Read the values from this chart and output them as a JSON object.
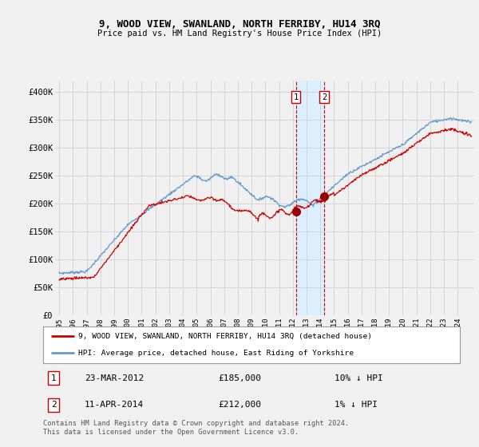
{
  "title": "9, WOOD VIEW, SWANLAND, NORTH FERRIBY, HU14 3RQ",
  "subtitle": "Price paid vs. HM Land Registry's House Price Index (HPI)",
  "legend_line1": "9, WOOD VIEW, SWANLAND, NORTH FERRIBY, HU14 3RQ (detached house)",
  "legend_line2": "HPI: Average price, detached house, East Riding of Yorkshire",
  "transaction1_date": "23-MAR-2012",
  "transaction1_price": "£185,000",
  "transaction1_note": "10% ↓ HPI",
  "transaction2_date": "11-APR-2014",
  "transaction2_price": "£212,000",
  "transaction2_note": "1% ↓ HPI",
  "footer": "Contains HM Land Registry data © Crown copyright and database right 2024.\nThis data is licensed under the Open Government Licence v3.0.",
  "hpi_color": "#6699cc",
  "price_color": "#cc0000",
  "marker_color": "#990000",
  "background_color": "#f0f0f0",
  "grid_color": "#cccccc",
  "highlight_color": "#ddeeff",
  "dashed_color": "#cc0000",
  "ylabel_values": [
    "£0",
    "£50K",
    "£100K",
    "£150K",
    "£200K",
    "£250K",
    "£300K",
    "£350K",
    "£400K"
  ],
  "y_ticks": [
    0,
    50000,
    100000,
    150000,
    200000,
    250000,
    300000,
    350000,
    400000
  ],
  "ylim": [
    0,
    420000
  ],
  "transaction1_x": 2012.22,
  "transaction2_x": 2014.28,
  "transaction1_y": 185000,
  "transaction2_y": 212000,
  "xtick_years": [
    1995,
    1996,
    1997,
    1998,
    1999,
    2000,
    2001,
    2002,
    2003,
    2004,
    2005,
    2006,
    2007,
    2008,
    2009,
    2010,
    2011,
    2012,
    2013,
    2014,
    2015,
    2016,
    2017,
    2018,
    2019,
    2020,
    2021,
    2022,
    2023,
    2024
  ]
}
